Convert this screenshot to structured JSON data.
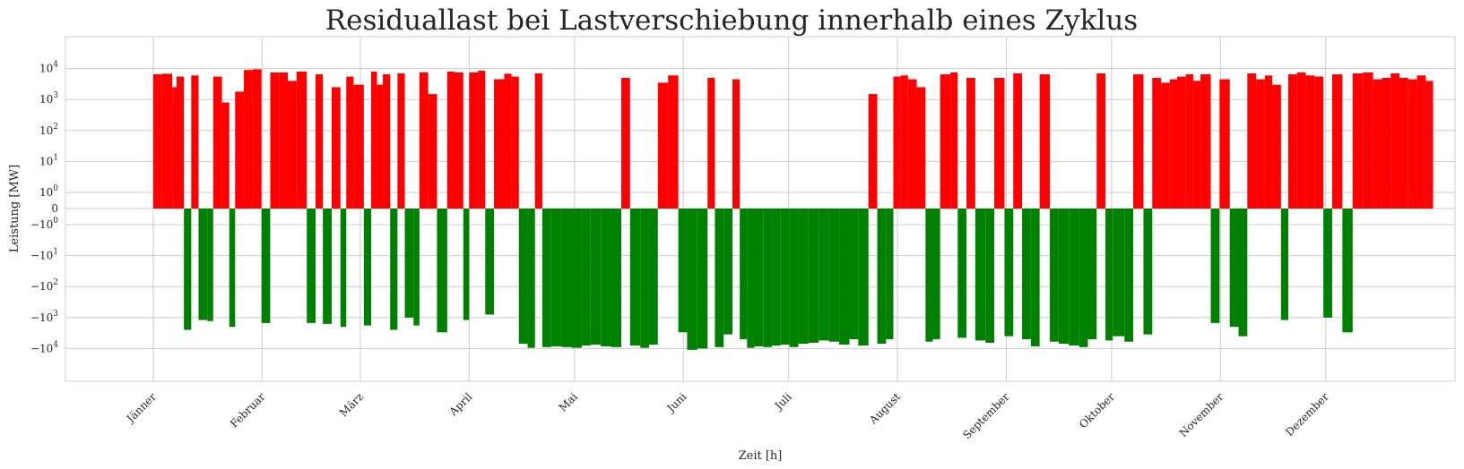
{
  "chart_data": {
    "type": "bar",
    "title": "Residuallast bei Lastverschiebung innerhalb eines Zyklus",
    "xlabel": "Zeit [h]",
    "ylabel": "Leistung [MW]",
    "yscale": "symlog",
    "ylim": [
      -30000,
      30000
    ],
    "xlim": [
      -600,
      8900
    ],
    "grid": true,
    "colors": {
      "positive": "#ff0000",
      "negative": "#008000"
    },
    "xticks": [
      {
        "value": 0,
        "label": "Jänner"
      },
      {
        "value": 744,
        "label": "Februar"
      },
      {
        "value": 1416,
        "label": "März"
      },
      {
        "value": 2160,
        "label": "April"
      },
      {
        "value": 2880,
        "label": "Mai"
      },
      {
        "value": 3624,
        "label": "Juni"
      },
      {
        "value": 4344,
        "label": "Juli"
      },
      {
        "value": 5088,
        "label": "August"
      },
      {
        "value": 5832,
        "label": "September"
      },
      {
        "value": 6552,
        "label": "Oktober"
      },
      {
        "value": 7296,
        "label": "November"
      },
      {
        "value": 8016,
        "label": "Dezember"
      }
    ],
    "yticks": [
      {
        "value": 10000,
        "label": "10^4"
      },
      {
        "value": 1000,
        "label": "10^3"
      },
      {
        "value": 100,
        "label": "10^2"
      },
      {
        "value": 10,
        "label": "10^1"
      },
      {
        "value": 1,
        "label": "10^0"
      },
      {
        "value": 0,
        "label": "0"
      },
      {
        "value": -1,
        "label": "−10^0"
      },
      {
        "value": -10,
        "label": "−10^1"
      },
      {
        "value": -100,
        "label": "−10^2"
      },
      {
        "value": -1000,
        "label": "−10^3"
      },
      {
        "value": -10000,
        "label": "−10^4"
      }
    ],
    "x": [
      0,
      60,
      130,
      160,
      210,
      260,
      310,
      370,
      410,
      470,
      520,
      560,
      620,
      680,
      740,
      800,
      860,
      920,
      980,
      1050,
      1110,
      1160,
      1220,
      1280,
      1320,
      1370,
      1440,
      1490,
      1530,
      1570,
      1620,
      1670,
      1720,
      1780,
      1820,
      1880,
      1940,
      2010,
      2060,
      2120,
      2160,
      2220,
      2270,
      2330,
      2400,
      2450,
      2500,
      2560,
      2610,
      2660,
      2720,
      2790,
      2860,
      2930,
      2990,
      3060,
      3130,
      3200,
      3260,
      3330,
      3390,
      3450,
      3520,
      3590,
      3650,
      3720,
      3790,
      3840,
      3900,
      3960,
      4010,
      4060,
      4110,
      4170,
      4230,
      4290,
      4350,
      4410,
      4480,
      4550,
      4620,
      4690,
      4760,
      4820,
      4890,
      4950,
      5010,
      5060,
      5110,
      5160,
      5220,
      5280,
      5330,
      5380,
      5450,
      5500,
      5560,
      5620,
      5690,
      5750,
      5820,
      5880,
      5940,
      6000,
      6060,
      6130,
      6190,
      6260,
      6330,
      6390,
      6450,
      6510,
      6560,
      6640,
      6700,
      6770,
      6830,
      6890,
      6950,
      7000,
      7060,
      7110,
      7160,
      7230,
      7290,
      7360,
      7420,
      7480,
      7540,
      7600,
      7650,
      7710,
      7760,
      7820,
      7880,
      7940,
      8000,
      8060,
      8130,
      8200,
      8270,
      8340,
      8400,
      8460,
      8520,
      8580,
      8640,
      8700
    ],
    "values": [
      6500,
      6800,
      2500,
      5500,
      -2500,
      6000,
      -1200,
      -1300,
      5500,
      800,
      -2000,
      1800,
      9000,
      9500,
      -1500,
      7500,
      7500,
      4000,
      8000,
      -1500,
      6500,
      -1600,
      2500,
      -2000,
      5500,
      3000,
      -1800,
      8000,
      3000,
      6500,
      -2500,
      7000,
      -1000,
      -1800,
      7500,
      1500,
      -3000,
      8000,
      7500,
      -1200,
      7500,
      8500,
      -800,
      4500,
      6800,
      5500,
      -7000,
      -9500,
      7000,
      -9000,
      -8500,
      -9000,
      -9500,
      -8000,
      -7500,
      -8500,
      -9000,
      5000,
      -8000,
      -9500,
      -7500,
      3500,
      6000,
      -3000,
      -11000,
      -10000,
      5000,
      -9000,
      -3500,
      4500,
      -5000,
      -9500,
      -8500,
      -9000,
      -8000,
      -7500,
      -9000,
      -7000,
      -6500,
      -5500,
      -6000,
      -7500,
      -5000,
      -8000,
      1500,
      -7000,
      -5000,
      5500,
      6000,
      4500,
      2500,
      -6000,
      -5000,
      6500,
      7500,
      -4500,
      5000,
      -5500,
      -6500,
      5000,
      -4000,
      7000,
      -5000,
      -8500,
      6500,
      -6000,
      -7000,
      -8000,
      -9000,
      -5000,
      7000,
      -5500,
      -4000,
      -6000,
      6500,
      -3500,
      5000,
      3500,
      4500,
      5500,
      6500,
      4000,
      6500,
      -1500,
      4500,
      -2000,
      -4000,
      7000,
      4500,
      6000,
      3000,
      -1200,
      6500,
      7500,
      6000,
      5500,
      -1000,
      6500,
      -3000,
      7000,
      7500,
      4500,
      5000,
      7000,
      5000,
      4500,
      6000,
      4000
    ]
  }
}
